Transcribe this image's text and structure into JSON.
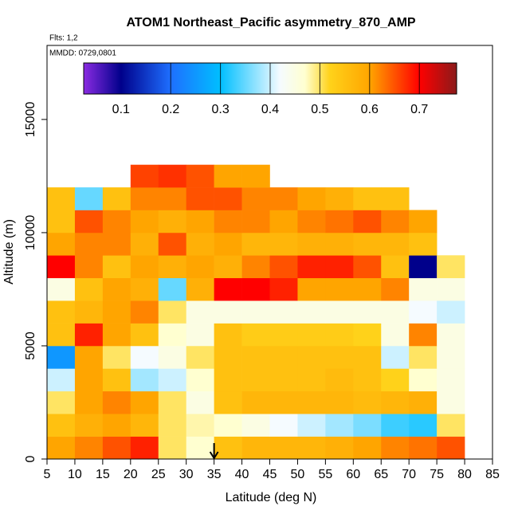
{
  "chart_data": {
    "type": "heatmap",
    "title": "ATOM1 Northeast_Pacific asymmetry_870_AMP",
    "annotations": [
      "Flts: 1,2",
      "MMDD: 0729,0801"
    ],
    "x_label": "Latitude (deg N)",
    "y_label": "Altitude (m)",
    "xlim": [
      5,
      85
    ],
    "ylim": [
      0,
      18270
    ],
    "xticks": [
      5,
      10,
      15,
      20,
      25,
      30,
      35,
      40,
      45,
      50,
      55,
      60,
      65,
      70,
      75,
      80,
      85
    ],
    "yticks": [
      0,
      5000,
      10000,
      15000
    ],
    "x_bins": [
      5,
      10,
      15,
      20,
      25,
      30,
      35,
      40,
      45,
      50,
      55,
      60,
      65,
      70,
      75,
      80
    ],
    "y_bins": [
      0,
      1000,
      2000,
      3000,
      4000,
      5000,
      6000,
      7000,
      8000,
      9000,
      10000,
      11000,
      12000,
      13000
    ],
    "values": [
      [
        0.6,
        0.62,
        0.65,
        0.68,
        0.5,
        0.47,
        0.55,
        0.57,
        0.57,
        0.57,
        0.58,
        0.6,
        0.62,
        0.63,
        0.65
      ],
      [
        0.55,
        0.58,
        0.6,
        0.57,
        0.5,
        0.48,
        0.47,
        0.45,
        0.42,
        0.4,
        0.38,
        0.36,
        0.33,
        0.32,
        0.5
      ],
      [
        0.5,
        0.6,
        0.62,
        0.6,
        0.5,
        0.45,
        0.55,
        0.57,
        0.57,
        0.57,
        0.57,
        0.56,
        0.57,
        0.58,
        0.45
      ],
      [
        0.4,
        0.6,
        0.55,
        0.38,
        0.4,
        0.47,
        0.55,
        0.55,
        0.55,
        0.55,
        0.56,
        0.55,
        0.52,
        0.47,
        0.45
      ],
      [
        0.25,
        0.6,
        0.5,
        0.42,
        0.45,
        0.5,
        0.55,
        0.55,
        0.55,
        0.55,
        0.55,
        0.55,
        0.4,
        0.5,
        0.45
      ],
      [
        0.55,
        0.68,
        0.6,
        0.55,
        0.47,
        0.45,
        0.55,
        0.53,
        0.53,
        0.53,
        0.53,
        0.52,
        0.45,
        0.62,
        0.45
      ],
      [
        0.55,
        0.57,
        0.6,
        0.62,
        0.5,
        0.45,
        0.45,
        0.45,
        0.45,
        0.45,
        0.45,
        0.45,
        0.45,
        0.42,
        0.4
      ],
      [
        0.45,
        0.55,
        0.6,
        0.58,
        0.35,
        0.58,
        0.7,
        0.7,
        0.68,
        0.6,
        0.6,
        0.6,
        0.62,
        0.45,
        0.45
      ],
      [
        0.7,
        0.62,
        0.55,
        0.6,
        0.58,
        0.6,
        0.58,
        0.62,
        0.65,
        0.68,
        0.68,
        0.65,
        0.55,
        0.1,
        0.5
      ],
      [
        0.6,
        0.62,
        0.62,
        0.58,
        0.65,
        0.58,
        0.6,
        0.57,
        0.57,
        0.58,
        0.58,
        0.57,
        0.57,
        0.55,
        null
      ],
      [
        0.55,
        0.65,
        0.62,
        0.6,
        0.58,
        0.6,
        0.62,
        0.62,
        0.6,
        0.62,
        0.63,
        0.65,
        0.62,
        0.6,
        null
      ],
      [
        0.55,
        0.35,
        0.55,
        0.62,
        0.62,
        0.65,
        0.65,
        0.62,
        0.62,
        0.6,
        0.58,
        0.55,
        0.55,
        null,
        null
      ],
      [
        null,
        null,
        null,
        0.66,
        0.67,
        0.65,
        0.6,
        0.6,
        null,
        null,
        null,
        null,
        null,
        null,
        null
      ]
    ],
    "arrow_x": 35,
    "colorbar": {
      "lim": [
        0.025,
        0.775
      ],
      "ticks": [
        0.1,
        0.2,
        0.3,
        0.4,
        0.5,
        0.6,
        0.7
      ],
      "stops": [
        [
          0.025,
          "#8a2be2"
        ],
        [
          0.1,
          "#00008b"
        ],
        [
          0.2,
          "#1e6fff"
        ],
        [
          0.3,
          "#00bfff"
        ],
        [
          0.42,
          "#f5fbff"
        ],
        [
          0.47,
          "#ffffd0"
        ],
        [
          0.52,
          "#ffd21a"
        ],
        [
          0.6,
          "#ffa500"
        ],
        [
          0.7,
          "#ff0000"
        ],
        [
          0.775,
          "#8b1a1a"
        ]
      ]
    }
  }
}
